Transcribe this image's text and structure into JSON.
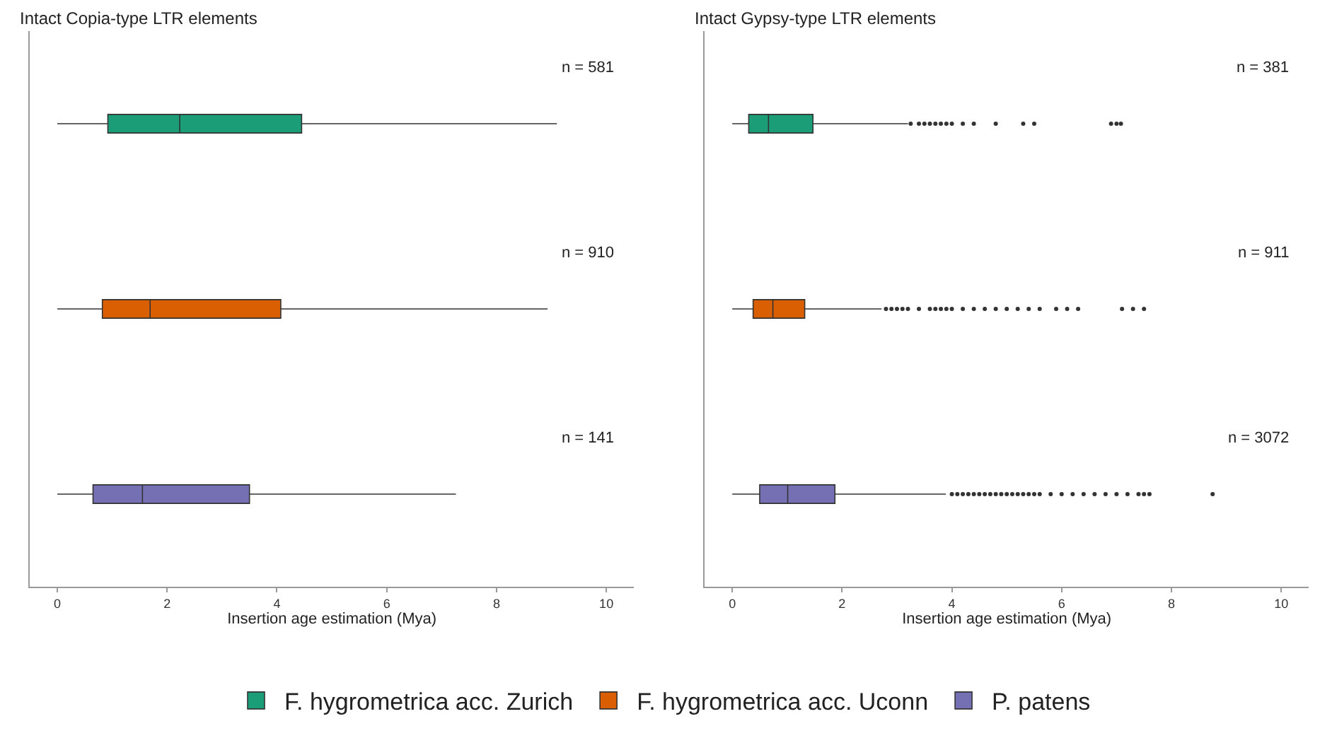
{
  "chart_data": [
    {
      "type": "box",
      "orientation": "horizontal",
      "title": "Intact Copia-type LTR elements",
      "xlabel": "Insertion age estimation (Mya)",
      "categories": [
        null,
        null,
        null
      ],
      "xlim": [
        -0.5,
        10.5
      ],
      "xticks": [
        0,
        2,
        4,
        6,
        8,
        10
      ],
      "tick_labels": "x",
      "legend": "bottom",
      "annotations": [
        "n = 581",
        "n = 910",
        "n = 141"
      ],
      "series": [
        {
          "name": "F. hygrometrica acc. Zurich",
          "color": "#1b9e77",
          "boxes": [
            {
              "low": 0,
              "q1": 0.92,
              "median": 2.23,
              "q3": 4.45,
              "high": 9.1
            },
            null,
            null
          ]
        },
        {
          "name": "F. hygrometrica acc. Uconn",
          "color": "#d95f02",
          "boxes": [
            null,
            {
              "low": 0,
              "q1": 0.82,
              "median": 1.69,
              "q3": 4.07,
              "high": 8.93
            },
            null
          ]
        },
        {
          "name": "P. patens",
          "color": "#7570b3",
          "boxes": [
            null,
            null,
            {
              "low": 0,
              "q1": 0.65,
              "median": 1.55,
              "q3": 3.5,
              "high": 7.26
            }
          ]
        }
      ]
    },
    {
      "type": "box",
      "orientation": "horizontal",
      "title": "Intact Gypsy-type LTR elements",
      "xlabel": "Insertion age estimation (Mya)",
      "categories": [
        null,
        null,
        null
      ],
      "xlim": [
        -0.5,
        10.5
      ],
      "xticks": [
        0,
        2,
        4,
        6,
        8,
        10
      ],
      "tick_labels": "x",
      "annotations": [
        "n = 381",
        "n = 911",
        "n = 3072"
      ],
      "series": [
        {
          "color": "#1b9e77",
          "boxes": [
            {
              "low": 0,
              "q1": 0.3,
              "median": 0.66,
              "q3": 1.47,
              "high": 3.2,
              "outliers": [
                3.25,
                3.4,
                3.5,
                3.6,
                3.7,
                3.8,
                3.9,
                4.0,
                4.2,
                4.4,
                4.8,
                5.3,
                5.5,
                6.9,
                7.0,
                7.08
              ]
            },
            null,
            null
          ]
        },
        {
          "color": "#d95f02",
          "boxes": [
            null,
            {
              "low": 0,
              "q1": 0.38,
              "median": 0.74,
              "q3": 1.32,
              "high": 2.72,
              "outliers": [
                2.8,
                2.9,
                3.0,
                3.1,
                3.2,
                3.4,
                3.6,
                3.7,
                3.8,
                3.9,
                4.0,
                4.2,
                4.4,
                4.6,
                4.8,
                5.0,
                5.2,
                5.4,
                5.6,
                5.9,
                6.1,
                6.3,
                7.1,
                7.3,
                7.5
              ]
            },
            null
          ]
        },
        {
          "color": "#7570b3",
          "boxes": [
            null,
            null,
            {
              "low": 0,
              "q1": 0.5,
              "median": 1.01,
              "q3": 1.87,
              "high": 3.89,
              "outliers": [
                4.0,
                4.1,
                4.2,
                4.3,
                4.4,
                4.5,
                4.6,
                4.7,
                4.8,
                4.9,
                5.0,
                5.1,
                5.2,
                5.3,
                5.4,
                5.5,
                5.6,
                5.8,
                6.0,
                6.2,
                6.4,
                6.6,
                6.8,
                7.0,
                7.2,
                7.4,
                7.5,
                7.6,
                8.75
              ]
            }
          ]
        }
      ]
    }
  ]
}
